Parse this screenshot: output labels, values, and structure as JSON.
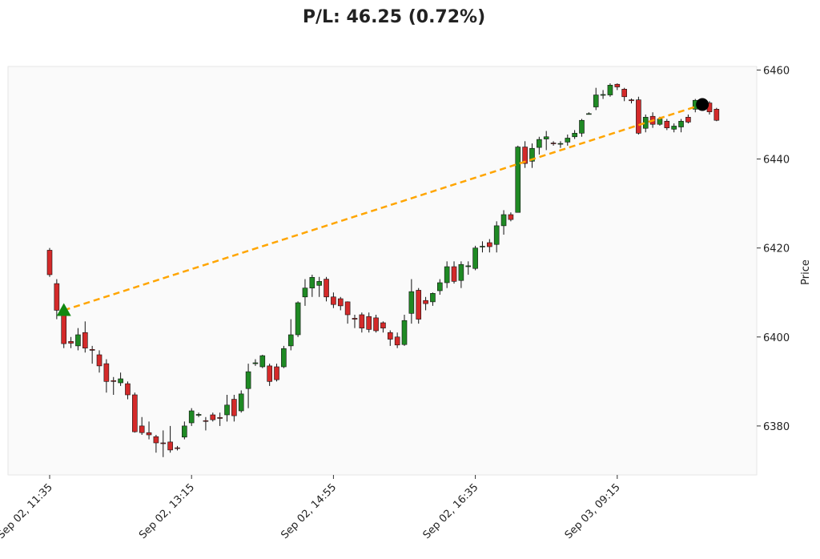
{
  "chart_data": {
    "type": "candlestick",
    "title": "P/L: 46.25 (0.72%)",
    "ylabel": "Price",
    "categories": [
      "Sep 02, 11:35",
      null,
      null,
      null,
      null,
      null,
      null,
      null,
      null,
      null,
      null,
      null,
      null,
      null,
      null,
      null,
      null,
      null,
      null,
      null,
      "Sep 02, 13:15",
      null,
      null,
      null,
      null,
      null,
      null,
      null,
      null,
      null,
      null,
      null,
      null,
      null,
      null,
      null,
      null,
      null,
      null,
      null,
      "Sep 02, 14:55",
      null,
      null,
      null,
      null,
      null,
      null,
      null,
      null,
      null,
      null,
      null,
      null,
      null,
      null,
      null,
      null,
      null,
      null,
      null,
      "Sep 02, 16:35",
      null,
      null,
      null,
      null,
      null,
      null,
      null,
      null,
      null,
      null,
      null,
      null,
      null,
      null,
      null,
      null,
      null,
      null,
      null,
      "Sep 03, 09:15",
      null,
      null,
      null,
      null,
      null,
      null,
      null,
      null,
      null,
      null,
      null,
      null,
      null,
      null
    ],
    "open": [
      6419.5,
      6412,
      6406,
      6399,
      6398,
      6401,
      6397.2,
      6396,
      6394,
      6390.2,
      6389.7,
      6389.5,
      6387,
      6380,
      6378.5,
      6377.6,
      6376.2,
      6376.4,
      6375.1,
      6377.5,
      6380.7,
      6382.4,
      6381.2,
      6382.5,
      6381.9,
      6382.5,
      6386,
      6383.4,
      6388.4,
      6394,
      6393.3,
      6393.5,
      6393.3,
      6393.3,
      6398,
      6400.5,
      6409,
      6411,
      6411.6,
      6413,
      6409,
      6408.6,
      6407.9,
      6404.2,
      6405,
      6404.6,
      6404.3,
      6403.2,
      6401,
      6400,
      6398.3,
      6405.3,
      6410.5,
      6408.2,
      6407.9,
      6410.4,
      6412.2,
      6415.8,
      6412.7,
      6415.8,
      6415.4,
      6420.3,
      6421.2,
      6420.8,
      6425,
      6427.5,
      6428,
      6442.7,
      6439.5,
      6442.6,
      6444.5,
      6443.6,
      6443.4,
      6443.8,
      6445,
      6445.8,
      6450.1,
      6451.7,
      6454.4,
      6454.4,
      6456.8,
      6455.7,
      6453.3,
      6453.3,
      6446.9,
      6449.6,
      6447.8,
      6448.5,
      6446.7,
      6447.2,
      6449.4,
      6451.2,
      6451.9,
      6452.6,
      6451.2
    ],
    "high": [
      6420,
      6413,
      6407,
      6400,
      6402,
      6403.5,
      6398,
      6397,
      6395,
      6391,
      6392,
      6390,
      6387.5,
      6382,
      6381,
      6378,
      6379,
      6380,
      6375.5,
      6381,
      6384,
      6383,
      6382,
      6383,
      6383,
      6387,
      6387,
      6388,
      6394,
      6395,
      6396,
      6394,
      6394,
      6398,
      6404,
      6408,
      6413,
      6414,
      6413.5,
      6413.5,
      6410,
      6409,
      6408,
      6405,
      6405.5,
      6405.5,
      6405,
      6403.5,
      6401.5,
      6401,
      6405,
      6413,
      6411,
      6409,
      6410,
      6413,
      6417,
      6417,
      6417,
      6417,
      6420.5,
      6421.5,
      6422,
      6426,
      6428.5,
      6428,
      6443,
      6444,
      6443.5,
      6445,
      6446.3,
      6444,
      6444,
      6445.5,
      6446.5,
      6449,
      6450.5,
      6456,
      6455.5,
      6457,
      6457,
      6456,
      6453.6,
      6454,
      6450,
      6450.5,
      6449.5,
      6449,
      6448,
      6449,
      6450,
      6453.5,
      6453,
      6453,
      6451.5
    ],
    "low": [
      6413.5,
      6404,
      6397.5,
      6397.5,
      6397,
      6396.5,
      6394,
      6392,
      6387.5,
      6387,
      6389,
      6386,
      6378.5,
      6378,
      6377,
      6374,
      6373,
      6374,
      6374.5,
      6377,
      6380,
      6382,
      6379,
      6381,
      6380,
      6381,
      6381,
      6383,
      6384,
      6393.5,
      6393,
      6389,
      6390,
      6393,
      6397,
      6400,
      6407,
      6409,
      6409,
      6408,
      6406.5,
      6406,
      6403,
      6402,
      6401,
      6401,
      6401,
      6401,
      6398,
      6397.5,
      6398,
      6403,
      6403,
      6406,
      6407,
      6409.5,
      6411,
      6412,
      6411,
      6414,
      6415,
      6419,
      6419,
      6419,
      6423,
      6426,
      6428,
      6438,
      6438,
      6441,
      6442,
      6443,
      6442.5,
      6443,
      6444.5,
      6445,
      6450,
      6451,
      6453.5,
      6454,
      6455.5,
      6453,
      6452.5,
      6445.5,
      6446,
      6447,
      6447.5,
      6446.5,
      6446,
      6446,
      6448,
      6450.5,
      6451,
      6450,
      6448.5
    ],
    "close": [
      6414,
      6406,
      6398.5,
      6398.6,
      6400.5,
      6397.5,
      6397,
      6393.5,
      6390,
      6390,
      6390.6,
      6387,
      6378.7,
      6378.5,
      6378,
      6376.2,
      6376.1,
      6374.6,
      6375,
      6380,
      6383.4,
      6382.6,
      6381.1,
      6381.4,
      6381.7,
      6384.7,
      6382.3,
      6387.2,
      6392.2,
      6394.2,
      6395.8,
      6390,
      6390.4,
      6397.4,
      6400.5,
      6407.7,
      6411,
      6413.4,
      6412.5,
      6409,
      6407.3,
      6407,
      6405,
      6404,
      6402,
      6401.7,
      6401.4,
      6402,
      6399.5,
      6398.2,
      6403.7,
      6410.2,
      6404,
      6407.5,
      6409.8,
      6412.2,
      6415.8,
      6412.5,
      6416.3,
      6416,
      6420,
      6420.4,
      6420.3,
      6425,
      6427.5,
      6426.4,
      6442.7,
      6439,
      6442.4,
      6444.4,
      6445,
      6443.5,
      6443.5,
      6444.7,
      6445.8,
      6448.7,
      6450.2,
      6454.4,
      6454.5,
      6456.6,
      6456.2,
      6454,
      6453.1,
      6445.8,
      6449.4,
      6447.8,
      6449,
      6447,
      6447.4,
      6448.5,
      6448.3,
      6453.2,
      6452.2,
      6450.6,
      6448.7
    ],
    "up_color": "#1f8a24",
    "down_color": "#d42a2a",
    "markers": [
      {
        "marker": "triangle",
        "color": "#118811",
        "values": [
          null,
          null,
          6406,
          null,
          null,
          null,
          null,
          null,
          null,
          null,
          null,
          null,
          null,
          null,
          null,
          null,
          null,
          null,
          null,
          null,
          null,
          null,
          null,
          null,
          null,
          null,
          null,
          null,
          null,
          null,
          null,
          null,
          null,
          null,
          null,
          null,
          null,
          null,
          null,
          null,
          null,
          null,
          null,
          null,
          null,
          null,
          null,
          null,
          null,
          null,
          null,
          null,
          null,
          null,
          null,
          null,
          null,
          null,
          null,
          null,
          null,
          null,
          null,
          null,
          null,
          null,
          null,
          null,
          null,
          null,
          null,
          null,
          null,
          null,
          null,
          null,
          null,
          null,
          null,
          null,
          null,
          null,
          null,
          null,
          null,
          null,
          null,
          null,
          null,
          null,
          null,
          null,
          null,
          null,
          null
        ]
      },
      {
        "marker": "circle",
        "color": "#000000",
        "values": [
          null,
          null,
          null,
          null,
          null,
          null,
          null,
          null,
          null,
          null,
          null,
          null,
          null,
          null,
          null,
          null,
          null,
          null,
          null,
          null,
          null,
          null,
          null,
          null,
          null,
          null,
          null,
          null,
          null,
          null,
          null,
          null,
          null,
          null,
          null,
          null,
          null,
          null,
          null,
          null,
          null,
          null,
          null,
          null,
          null,
          null,
          null,
          null,
          null,
          null,
          null,
          null,
          null,
          null,
          null,
          null,
          null,
          null,
          null,
          null,
          null,
          null,
          null,
          null,
          null,
          null,
          null,
          null,
          null,
          null,
          null,
          null,
          null,
          null,
          null,
          null,
          null,
          null,
          null,
          null,
          null,
          null,
          null,
          null,
          null,
          null,
          null,
          null,
          null,
          null,
          null,
          null,
          6452.25,
          null,
          null
        ]
      }
    ],
    "trade_line": {
      "color": "#ffa500",
      "dashed": true
    },
    "ylim": [
      6369,
      6460.8
    ],
    "yticks": [
      6380,
      6400,
      6420,
      6440,
      6460
    ],
    "y_axis_side": "right"
  }
}
